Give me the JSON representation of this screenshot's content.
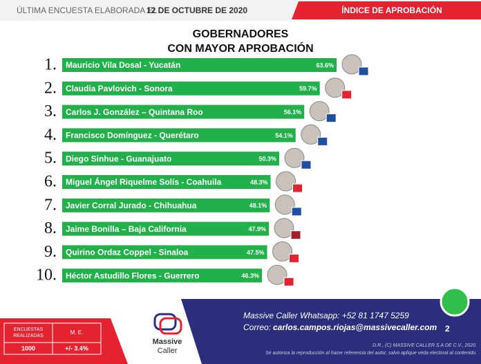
{
  "header": {
    "prefix": "ÚLTIMA ENCUESTA ELABORADA EL",
    "date": "12 DE OCTUBRE DE 2020",
    "section": "ÍNDICE DE APROBACIÓN"
  },
  "chart_data": {
    "type": "bar",
    "orientation": "horizontal",
    "title": [
      "GOBERNADORES",
      "CON MAYOR APROBACIÓN"
    ],
    "ranks": [
      "1.",
      "2.",
      "3.",
      "4.",
      "5.",
      "6.",
      "7.",
      "8.",
      "9.",
      "10."
    ],
    "categories": [
      "Mauricio Vila Dosal - Yucatán",
      "Claudia Pavlovich - Sonora",
      "Carlos J. González – Quintana Roo",
      "Francisco Domínguez - Querétaro",
      "Diego Sinhue - Guanajuato",
      "Miguel Ángel Riquelme Solís - Coahuila",
      "Javier Corral Jurado - Chihuahua",
      "Jaime Bonilla – Baja California",
      "Quirino Ordaz Coppel - Sinaloa",
      "Héctor Astudillo Flores - Guerrero"
    ],
    "values": [
      63.6,
      59.7,
      56.1,
      54.1,
      50.3,
      48.3,
      48.1,
      47.9,
      47.5,
      46.3
    ],
    "value_labels": [
      "63.6%",
      "59.7%",
      "56.1%",
      "54.1%",
      "50.3%",
      "48.3%",
      "48.1%",
      "47.9%",
      "47.5%",
      "46.3%"
    ],
    "color": "#22b04b",
    "xlim": [
      0,
      70
    ]
  },
  "footer": {
    "whatsapp": "Massive Caller Whatsapp: +52  81 1747 5259",
    "email_label": "Correo:",
    "email": "carlos.campos.riojas@massivecaller.com",
    "page": "2",
    "rights": "D.R., (C) MASSIVE CALLER S.A DE C.V., 2020.",
    "notice": "Se autoriza la reproducción al hacer referencia del autor, salvo aplique veda electoral al contenido.",
    "logo": [
      "Massive",
      "Caller"
    ],
    "table": {
      "headers": [
        "ENCUESTAS REALIZADAS",
        "M. E."
      ],
      "row": [
        "1000",
        "+/- 3.4%"
      ]
    }
  }
}
